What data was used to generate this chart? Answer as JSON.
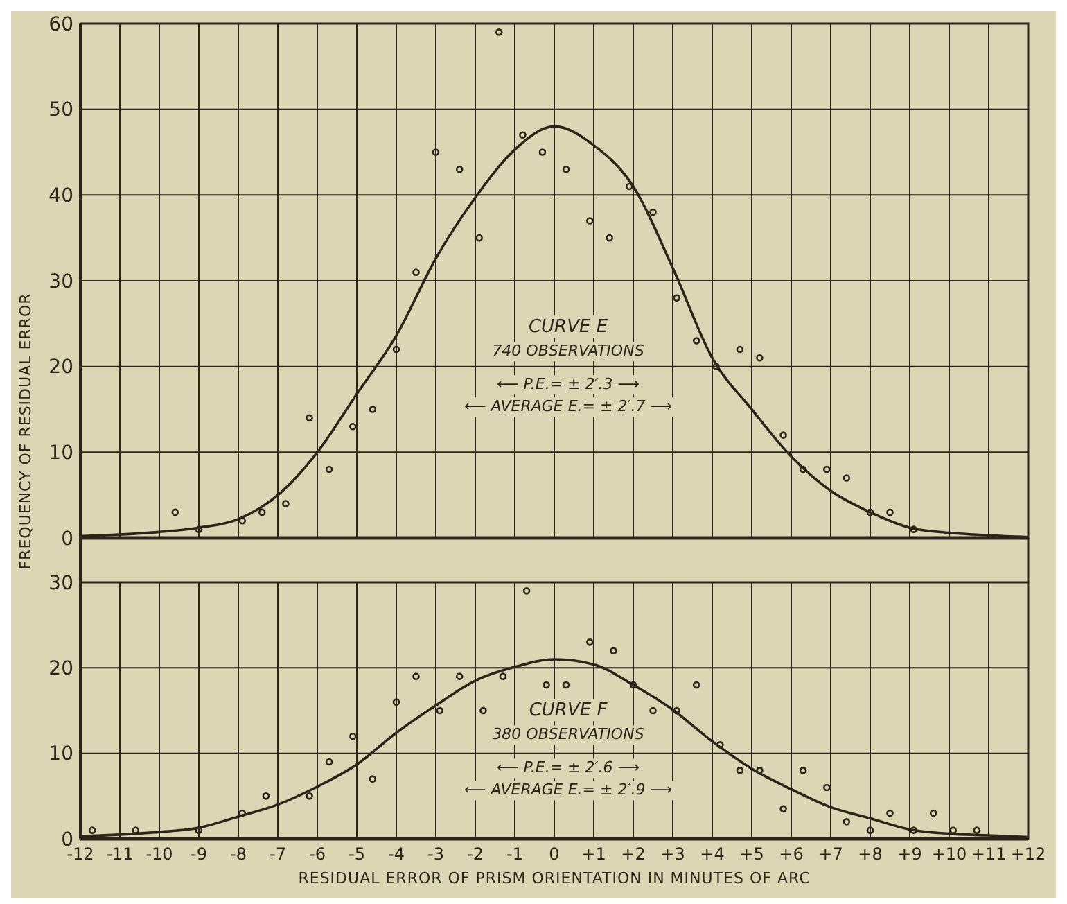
{
  "chart_data": [
    {
      "type": "scatter",
      "ylabel": "FREQUENCY OF RESIDUAL ERROR",
      "xlim": [
        -12,
        12
      ],
      "ylim": [
        0,
        60
      ],
      "yticks": [
        0,
        10,
        20,
        30,
        40,
        50,
        60
      ],
      "xticks": [
        -12,
        -11,
        -10,
        -9,
        -8,
        -7,
        -6,
        -5,
        -4,
        -3,
        -2,
        -1,
        0,
        1,
        2,
        3,
        4,
        5,
        6,
        7,
        8,
        9,
        10,
        11,
        12
      ],
      "tick_labels": "y",
      "grid": true,
      "annotations": [
        "CURVE E",
        "740 OBSERVATIONS",
        "⟵ P.E.= ± 2′.3 ⟶",
        "⟵ AVERAGE E.= ± 2′.7 ⟶"
      ],
      "series": [
        {
          "marker": "circle",
          "color": "#2b2418",
          "x": [
            -9.6,
            -9,
            -7.9,
            -7.4,
            -6.8,
            -6.2,
            -5.7,
            -5.1,
            -4.6,
            -4,
            -3.5,
            -3,
            -2.4,
            -1.9,
            -1.4,
            -0.8,
            -0.3,
            0.3,
            0.9,
            1.4,
            1.9,
            2.5,
            3.1,
            3.6,
            4.1,
            4.7,
            5.2,
            5.8,
            6.3,
            6.9,
            7.4,
            8,
            8.5,
            9.1
          ],
          "values": [
            3,
            1,
            2,
            3,
            4,
            14,
            8,
            13,
            15,
            22,
            31,
            45,
            43,
            35,
            59,
            47,
            45,
            43,
            37,
            35,
            41,
            38,
            28,
            23,
            20,
            22,
            21,
            12,
            8,
            8,
            7,
            3,
            3,
            1
          ]
        },
        {
          "type": "line",
          "marker": "none",
          "color": "#2b2418",
          "x": [
            -12,
            -11,
            -10,
            -9,
            -8,
            -7,
            -6,
            -5,
            -4,
            -3,
            -2,
            -1,
            0,
            1,
            2,
            3,
            4,
            5,
            6,
            7,
            8,
            9,
            10,
            11,
            12
          ],
          "values": [
            0.2,
            0.4,
            0.7,
            1.2,
            2.2,
            5,
            10,
            16.8,
            23.6,
            32.6,
            39.7,
            45.3,
            48,
            45.8,
            41,
            31.5,
            21,
            15,
            9.5,
            5.5,
            3,
            1.2,
            0.6,
            0.3,
            0.1
          ]
        }
      ]
    },
    {
      "type": "scatter",
      "xlabel": "RESIDUAL ERROR OF PRISM ORIENTATION IN MINUTES OF ARC",
      "xlim": [
        -12,
        12
      ],
      "ylim": [
        0,
        30
      ],
      "yticks": [
        0,
        10,
        20,
        30
      ],
      "xticks": [
        {
          "value": -12,
          "label": "-12"
        },
        {
          "value": -11,
          "label": "-11"
        },
        {
          "value": -10,
          "label": "-10"
        },
        {
          "value": -9,
          "label": "-9"
        },
        {
          "value": -8,
          "label": "-8"
        },
        {
          "value": -7,
          "label": "-7"
        },
        {
          "value": -6,
          "label": "-6"
        },
        {
          "value": -5,
          "label": "-5"
        },
        {
          "value": -4,
          "label": "-4"
        },
        {
          "value": -3,
          "label": "-3"
        },
        {
          "value": -2,
          "label": "-2"
        },
        {
          "value": -1,
          "label": "-1"
        },
        {
          "value": 0,
          "label": "0"
        },
        {
          "value": 1,
          "label": "+1"
        },
        {
          "value": 2,
          "label": "+2"
        },
        {
          "value": 3,
          "label": "+3"
        },
        {
          "value": 4,
          "label": "+4"
        },
        {
          "value": 5,
          "label": "+5"
        },
        {
          "value": 6,
          "label": "+6"
        },
        {
          "value": 7,
          "label": "+7"
        },
        {
          "value": 8,
          "label": "+8"
        },
        {
          "value": 9,
          "label": "+9"
        },
        {
          "value": 10,
          "label": "+10"
        },
        {
          "value": 11,
          "label": "+11"
        },
        {
          "value": 12,
          "label": "+12"
        }
      ],
      "grid": true,
      "annotations": [
        "CURVE F",
        "380 OBSERVATIONS",
        "⟵ P.E.= ± 2′.6 ⟶",
        "⟵ AVERAGE E.= ± 2′.9 ⟶"
      ],
      "series": [
        {
          "marker": "circle",
          "color": "#2b2418",
          "x": [
            -11.7,
            -10.6,
            -9,
            -7.9,
            -7.3,
            -6.2,
            -5.7,
            -5.1,
            -4.6,
            -4,
            -3.5,
            -2.9,
            -2.4,
            -1.8,
            -1.3,
            -0.7,
            -0.2,
            0.3,
            0.9,
            1.5,
            2,
            2.5,
            3.1,
            3.6,
            4.2,
            4.7,
            5.2,
            5.8,
            6.3,
            6.9,
            7.4,
            8,
            8.5,
            9.1,
            9.6,
            10.1,
            10.7
          ],
          "values": [
            1,
            1,
            1,
            3,
            5,
            5,
            9,
            12,
            7,
            16,
            19,
            15,
            19,
            15,
            19,
            29,
            18,
            18,
            23,
            22,
            18,
            15,
            15,
            18,
            11,
            8,
            8,
            3.5,
            8,
            6,
            2,
            1,
            3,
            1,
            3,
            1,
            1
          ]
        },
        {
          "type": "line",
          "marker": "none",
          "color": "#2b2418",
          "x": [
            -12,
            -11,
            -10,
            -9,
            -8,
            -7,
            -6,
            -5,
            -4,
            -3,
            -2,
            -1,
            0,
            1,
            2,
            3,
            4,
            5,
            6,
            7,
            8,
            9,
            10,
            11,
            12
          ],
          "values": [
            0.3,
            0.5,
            0.8,
            1.3,
            2.6,
            4,
            6.1,
            8.7,
            12.4,
            15.6,
            18.5,
            20.1,
            21,
            20.4,
            18,
            15.1,
            11.4,
            8.2,
            5.8,
            3.7,
            2.4,
            1.1,
            0.6,
            0.4,
            0.2
          ]
        }
      ]
    }
  ]
}
